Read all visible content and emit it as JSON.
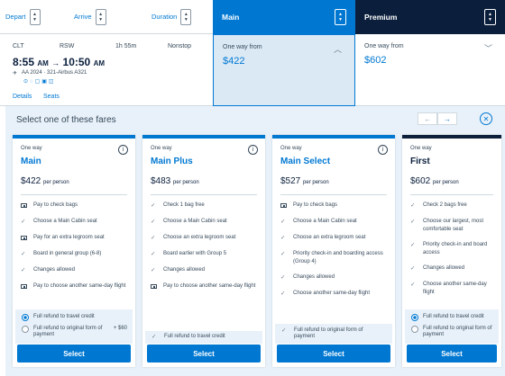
{
  "sortbar": {
    "depart": "Depart",
    "arrive": "Arrive",
    "duration": "Duration"
  },
  "cabins": {
    "main": "Main",
    "premium": "Premium"
  },
  "flight": {
    "origin": "CLT",
    "destination": "RSW",
    "duration": "1h 55m",
    "stops": "Nonstop",
    "depart_time": "8:55",
    "depart_ampm": "AM",
    "arrive_time": "10:50",
    "arrive_ampm": "AM",
    "flight_info": "AA 2024 · 321-Airbus A321",
    "details": "Details",
    "seats": "Seats"
  },
  "fares_top": {
    "main_label": "One way from",
    "main_price": "$422",
    "premium_label": "One way from",
    "premium_price": "$602"
  },
  "panel": {
    "title": "Select one of these fares",
    "prev": "←",
    "next": "→",
    "close": "⊗"
  },
  "cards": [
    {
      "oneway": "One way",
      "name": "Main",
      "price": "$422",
      "per": "per person",
      "features": [
        {
          "icon": "bag-box-icon",
          "text": "Pay to check bags"
        },
        {
          "icon": "check-icon",
          "text": "Choose a Main Cabin seat"
        },
        {
          "icon": "bag-box-icon",
          "text": "Pay for an extra legroom seat"
        },
        {
          "icon": "check-icon",
          "text": "Board in general group (6-8)"
        },
        {
          "icon": "check-icon",
          "text": "Changes allowed"
        },
        {
          "icon": "bag-box-icon",
          "text": "Pay to choose another same-day flight"
        }
      ],
      "refund1": "Full refund to travel credit",
      "refund2": "Full refund to original form of payment",
      "refund2_amount": "+ $60",
      "select": "Select"
    },
    {
      "oneway": "One way",
      "name": "Main Plus",
      "price": "$483",
      "per": "per person",
      "features": [
        {
          "icon": "check-icon",
          "text": "Check 1 bag free"
        },
        {
          "icon": "check-icon",
          "text": "Choose a Main Cabin seat"
        },
        {
          "icon": "check-icon",
          "text": "Choose an extra legroom seat"
        },
        {
          "icon": "check-icon",
          "text": "Board earlier with Group 5"
        },
        {
          "icon": "check-icon",
          "text": "Changes allowed"
        },
        {
          "icon": "bag-box-icon",
          "text": "Pay to choose another same-day flight"
        }
      ],
      "refund1": "Full refund to travel credit",
      "select": "Select"
    },
    {
      "oneway": "One way",
      "name": "Main Select",
      "price": "$527",
      "per": "per person",
      "features": [
        {
          "icon": "bag-box-icon",
          "text": "Pay to check bags"
        },
        {
          "icon": "check-icon",
          "text": "Choose a Main Cabin seat"
        },
        {
          "icon": "check-icon",
          "text": "Choose an extra legroom seat"
        },
        {
          "icon": "check-icon",
          "text": "Priority check-in and boarding access (Group 4)"
        },
        {
          "icon": "check-icon",
          "text": "Changes allowed"
        },
        {
          "icon": "check-icon",
          "text": "Choose another same-day flight"
        }
      ],
      "refund1": "Full refund to original form of payment",
      "select": "Select"
    },
    {
      "oneway": "One way",
      "name": "First",
      "price": "$602",
      "per": "per person",
      "features": [
        {
          "icon": "check-icon",
          "text": "Check 2 bags free"
        },
        {
          "icon": "check-icon",
          "text": "Choose our largest, most comfortable seat"
        },
        {
          "icon": "check-icon",
          "text": "Priority check-in and board access"
        },
        {
          "icon": "check-icon",
          "text": "Changes allowed"
        },
        {
          "icon": "check-icon",
          "text": "Choose another same-day flight"
        }
      ],
      "refund1": "Full refund to travel credit",
      "refund2": "Full refund to original form of payment",
      "select": "Select"
    }
  ],
  "colors": {
    "accent": "#0078d2",
    "navy": "#0b1f3d",
    "panel_bg": "#e8f1f9"
  }
}
